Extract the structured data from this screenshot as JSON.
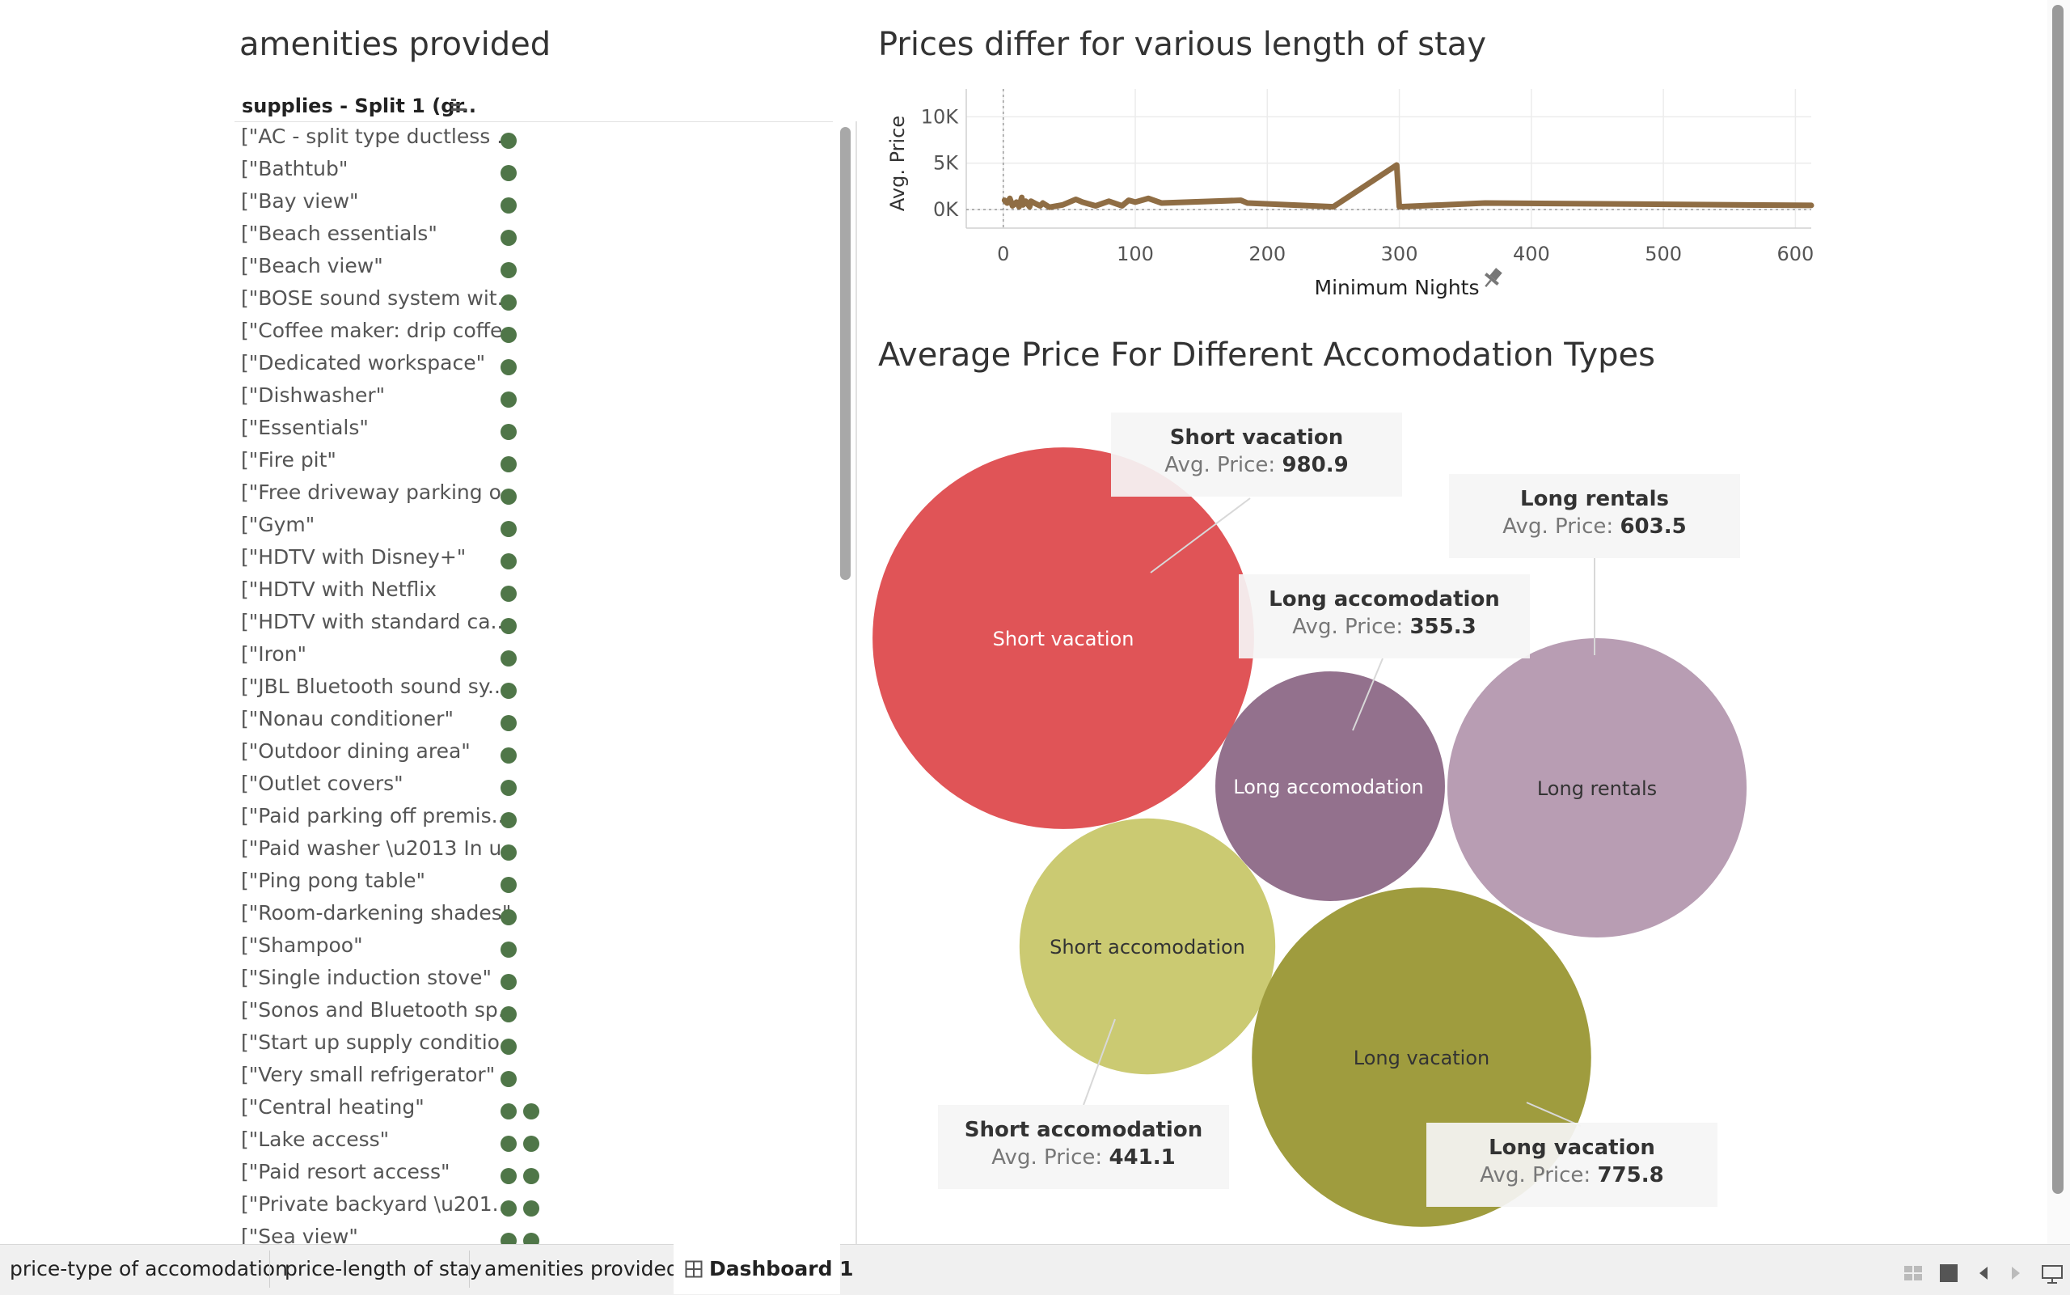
{
  "amenities": {
    "title": "amenities provided",
    "column_header": "supplies - Split 1 (gr..",
    "items": [
      {
        "label": "[\"AC - split type ductless ..",
        "dots": 1
      },
      {
        "label": "[\"Bathtub\"",
        "dots": 1
      },
      {
        "label": "[\"Bay view\"",
        "dots": 1
      },
      {
        "label": "[\"Beach essentials\"",
        "dots": 1
      },
      {
        "label": "[\"Beach view\"",
        "dots": 1
      },
      {
        "label": "[\"BOSE sound system wit..",
        "dots": 1
      },
      {
        "label": "[\"Coffee maker: drip coffe..",
        "dots": 1
      },
      {
        "label": "[\"Dedicated workspace\"",
        "dots": 1
      },
      {
        "label": "[\"Dishwasher\"",
        "dots": 1
      },
      {
        "label": "[\"Essentials\"",
        "dots": 1
      },
      {
        "label": "[\"Fire pit\"",
        "dots": 1
      },
      {
        "label": "[\"Free driveway parking o..",
        "dots": 1
      },
      {
        "label": "[\"Gym\"",
        "dots": 1
      },
      {
        "label": "[\"HDTV with Disney+\"",
        "dots": 1
      },
      {
        "label": "[\"HDTV with Netflix",
        "dots": 1
      },
      {
        "label": "[\"HDTV with standard ca..",
        "dots": 1
      },
      {
        "label": "[\"Iron\"",
        "dots": 1
      },
      {
        "label": "[\"JBL  Bluetooth sound sy..",
        "dots": 1
      },
      {
        "label": "[\"Nonau conditioner\"",
        "dots": 1
      },
      {
        "label": "[\"Outdoor dining area\"",
        "dots": 1
      },
      {
        "label": "[\"Outlet covers\"",
        "dots": 1
      },
      {
        "label": "[\"Paid parking off premis..",
        "dots": 1
      },
      {
        "label": "[\"Paid washer \\u2013 In u..",
        "dots": 1
      },
      {
        "label": "[\"Ping pong table\"",
        "dots": 1
      },
      {
        "label": "[\"Room-darkening shades\"",
        "dots": 1
      },
      {
        "label": "[\"Shampoo\"",
        "dots": 1
      },
      {
        "label": "[\"Single  induction stove\"",
        "dots": 1
      },
      {
        "label": "[\"Sonos and Bluetooth sp..",
        "dots": 1
      },
      {
        "label": "[\"Start up supply conditio..",
        "dots": 1
      },
      {
        "label": "[\"Very small refrigerator\"",
        "dots": 1
      },
      {
        "label": "[\"Central heating\"",
        "dots": 2
      },
      {
        "label": "[\"Lake access\"",
        "dots": 2
      },
      {
        "label": "[\"Paid resort access\"",
        "dots": 2
      },
      {
        "label": "[\"Private backyard \\u201..",
        "dots": 2
      },
      {
        "label": "[\"Sea view\"",
        "dots": 2
      }
    ]
  },
  "line_chart": {
    "title": "Prices differ for various length of stay",
    "chart_data": {
      "type": "line",
      "xlabel": "Minimum Nights",
      "ylabel": "Avg. Price",
      "xlim": [
        -28,
        612
      ],
      "ylim": [
        -2000,
        13000
      ],
      "x_ticks": [
        0,
        100,
        200,
        300,
        400,
        500,
        600
      ],
      "x_tick_labels": [
        "0",
        "100",
        "200",
        "300",
        "400",
        "500",
        "600"
      ],
      "y_ticks": [
        0,
        5000,
        10000
      ],
      "y_tick_labels": [
        "0K",
        "5K",
        "10K"
      ],
      "grid": true,
      "color": "#8f6d44",
      "series": [
        {
          "x": [
            1,
            3,
            5,
            7,
            10,
            12,
            14,
            15,
            17,
            20,
            21,
            25,
            28,
            30,
            35,
            45,
            55,
            60,
            70,
            80,
            90,
            95,
            100,
            110,
            120,
            180,
            185,
            250,
            298,
            300,
            365,
            612
          ],
          "y": [
            1000,
            700,
            1200,
            400,
            800,
            300,
            1300,
            500,
            900,
            300,
            900,
            600,
            400,
            700,
            250,
            500,
            1100,
            800,
            400,
            900,
            400,
            1000,
            800,
            1200,
            700,
            1000,
            700,
            300,
            4800,
            300,
            700,
            450
          ]
        }
      ]
    }
  },
  "bubble_chart": {
    "title": "Average Price For Different Accomodation Types",
    "measure_label": "Avg. Price: ",
    "chart_data": {
      "type": "bubble",
      "categories": [
        "Short vacation",
        "Long accomodation",
        "Long rentals",
        "Short accomodation",
        "Long vacation"
      ],
      "values": [
        980.9,
        355.3,
        603.5,
        441.1,
        775.8
      ],
      "value_labels": [
        "980.9",
        "355.3",
        "603.5",
        "441.1",
        "775.8"
      ],
      "colors": [
        "#e05457",
        "#93718d",
        "#b89db3",
        "#cbca72",
        "#9f9c3e"
      ],
      "label_colors": [
        "#ffffff",
        "#ffffff",
        "#333333",
        "#333333",
        "#333333"
      ]
    }
  },
  "tabs": [
    {
      "label": "price-type of accomodation",
      "active": false
    },
    {
      "label": "price-length of stay",
      "active": false
    },
    {
      "label": "amenities provided",
      "active": false
    },
    {
      "label": "Dashboard 1",
      "active": true
    }
  ]
}
